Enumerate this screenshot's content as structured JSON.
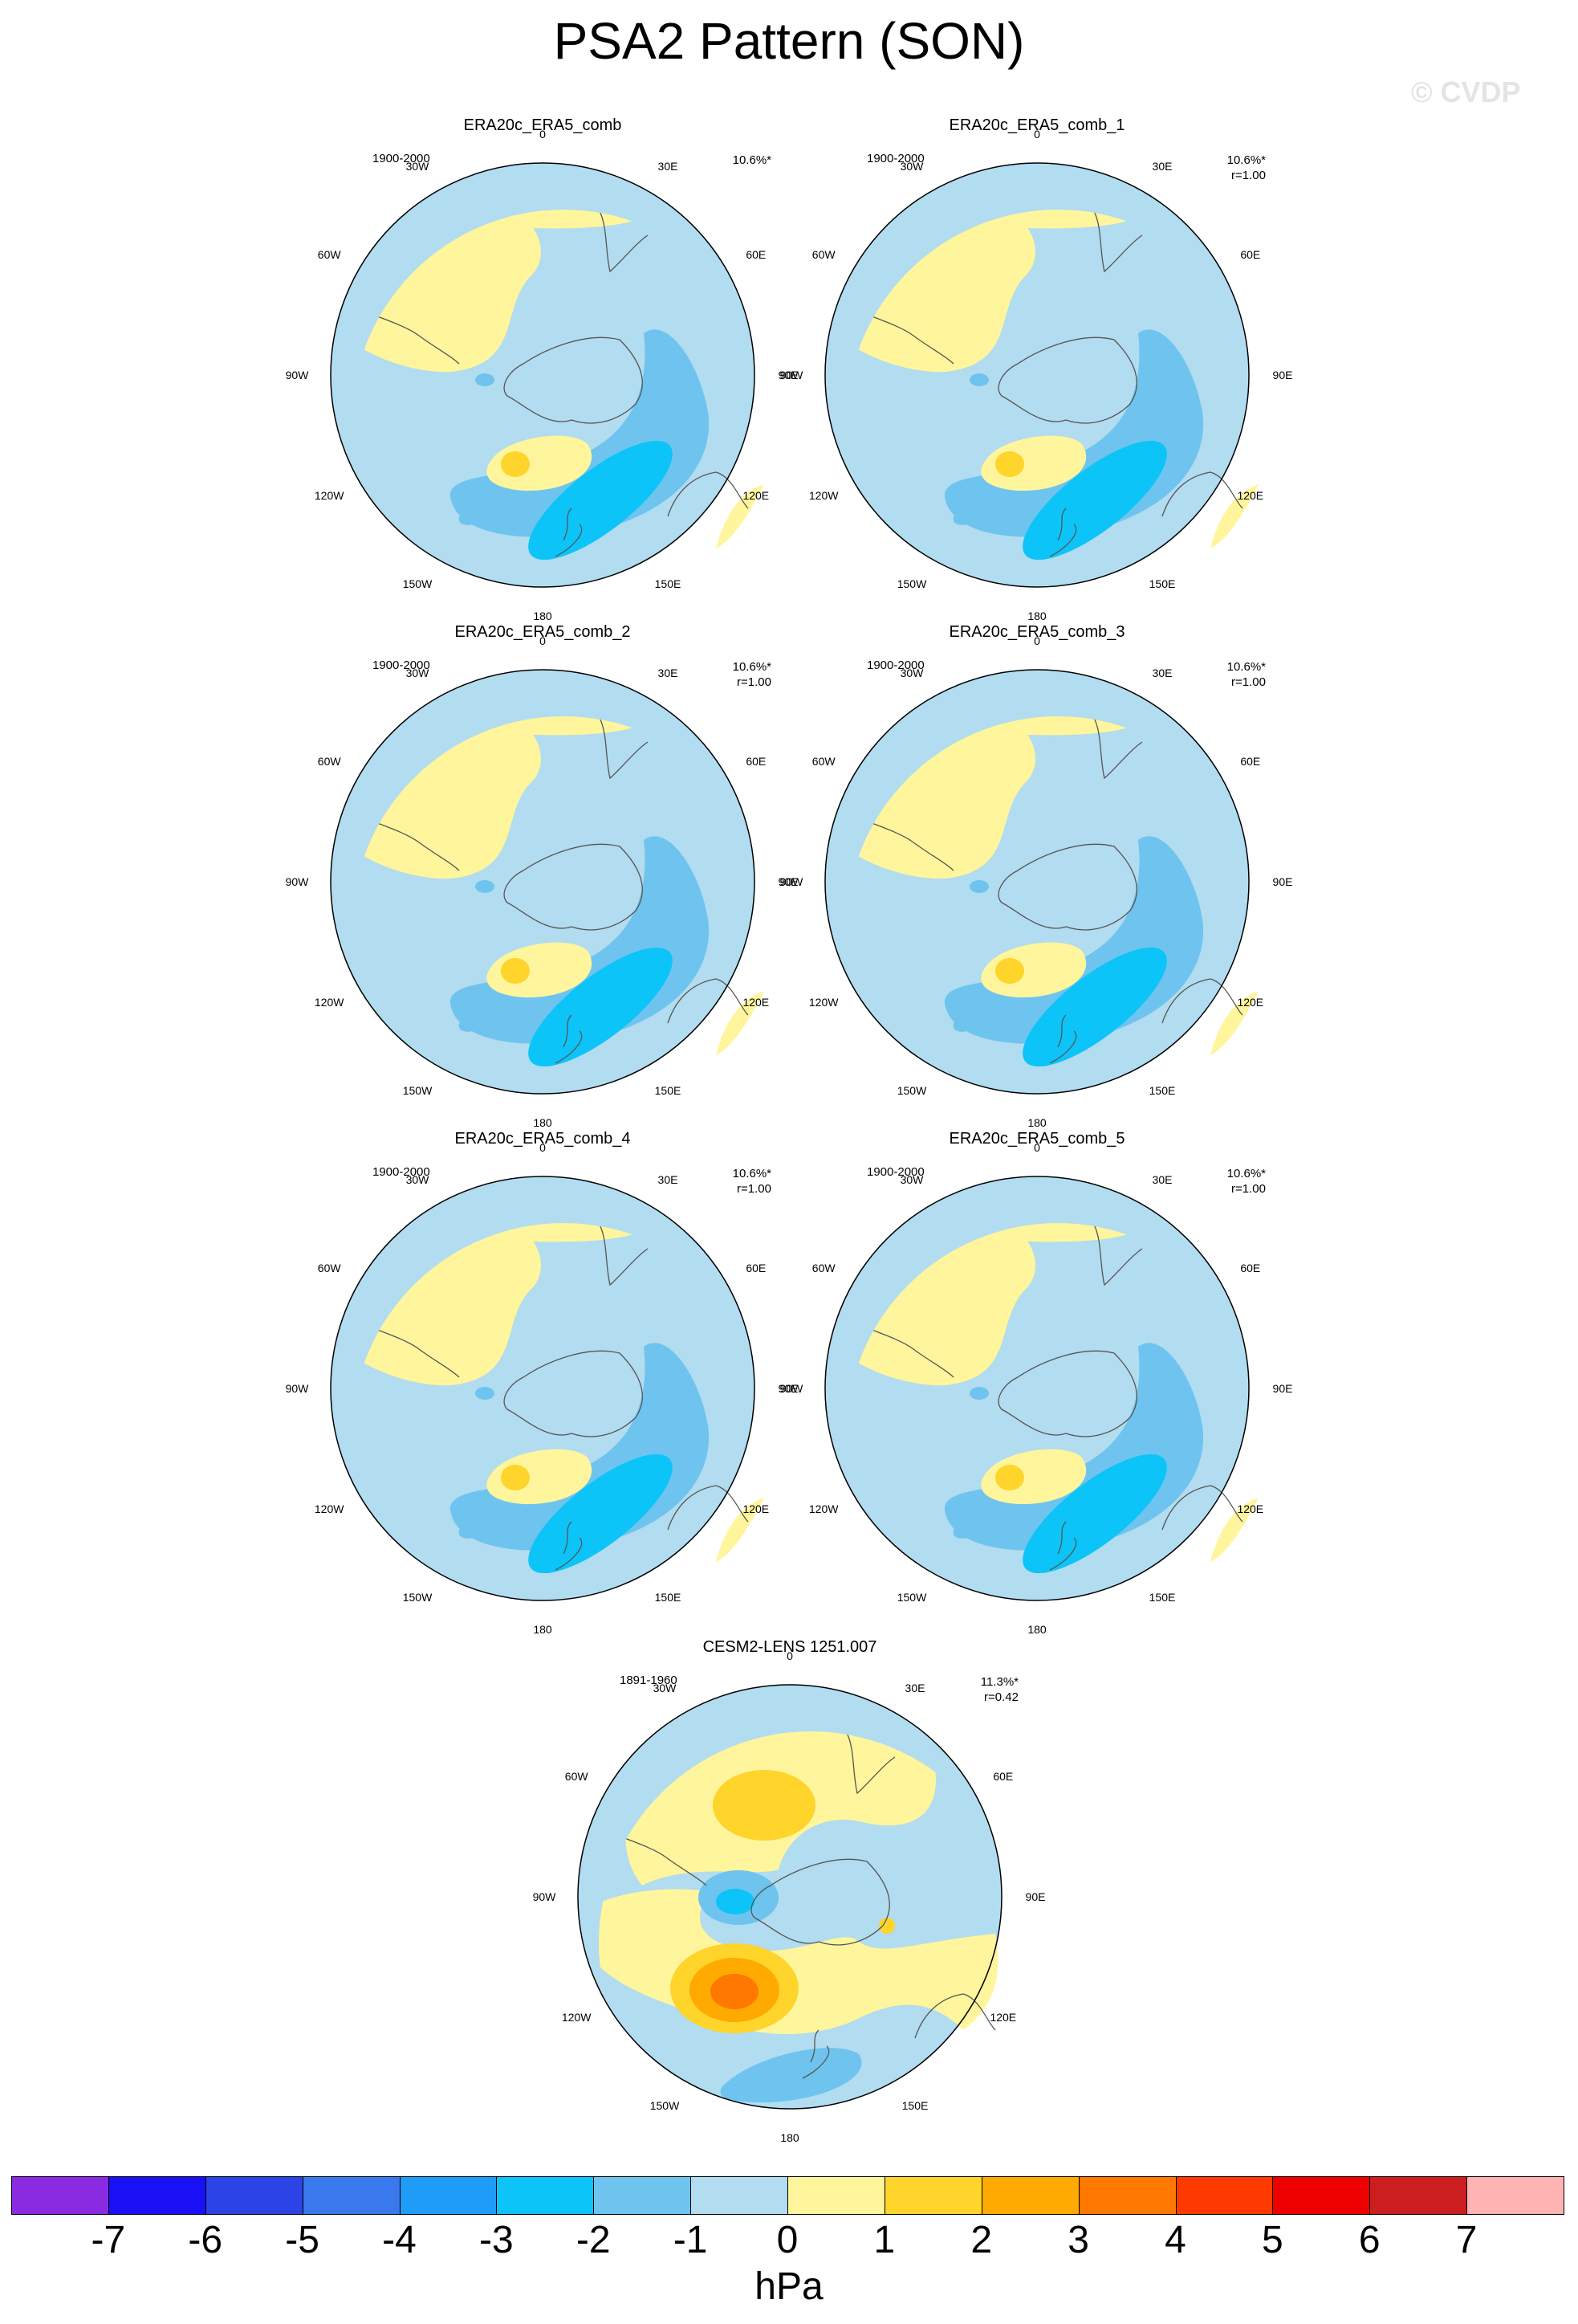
{
  "figure": {
    "title": "PSA2 Pattern (SON)",
    "copyright": "© CVDP",
    "units": "hPa"
  },
  "map_labels": {
    "lon": [
      "0",
      "30E",
      "60E",
      "90E",
      "120E",
      "150E",
      "180",
      "150W",
      "120W",
      "90W",
      "60W",
      "30W"
    ]
  },
  "panels": [
    {
      "title": "ERA20c_ERA5_comb",
      "period": "1900-2000",
      "pct": "10.6%*",
      "corr": "",
      "pattern": "obs"
    },
    {
      "title": "ERA20c_ERA5_comb_1",
      "period": "1900-2000",
      "pct": "10.6%*",
      "corr": "r=1.00",
      "pattern": "obs"
    },
    {
      "title": "ERA20c_ERA5_comb_2",
      "period": "1900-2000",
      "pct": "10.6%*",
      "corr": "r=1.00",
      "pattern": "obs"
    },
    {
      "title": "ERA20c_ERA5_comb_3",
      "period": "1900-2000",
      "pct": "10.6%*",
      "corr": "r=1.00",
      "pattern": "obs"
    },
    {
      "title": "ERA20c_ERA5_comb_4",
      "period": "1900-2000",
      "pct": "10.6%*",
      "corr": "r=1.00",
      "pattern": "obs"
    },
    {
      "title": "ERA20c_ERA5_comb_5",
      "period": "1900-2000",
      "pct": "10.6%*",
      "corr": "r=1.00",
      "pattern": "obs"
    },
    {
      "title": "CESM2-LENS 1251.007",
      "period": "1891-1960",
      "pct": "11.3%*",
      "corr": "r=0.42",
      "pattern": "model"
    }
  ],
  "colorbar": {
    "ticks": [
      "-7",
      "-6",
      "-5",
      "-4",
      "-3",
      "-2",
      "-1",
      "0",
      "1",
      "2",
      "3",
      "4",
      "5",
      "6",
      "7"
    ],
    "colors": [
      "#8a2be2",
      "#1a10f5",
      "#2c43e6",
      "#3a78ee",
      "#1e9cf7",
      "#0cc4f7",
      "#6ec4ee",
      "#b2dcf0",
      "#fff59c",
      "#ffd42b",
      "#ffaa00",
      "#ff7800",
      "#ff3a00",
      "#ee0000",
      "#cc1e1e",
      "#ffb4b4"
    ]
  },
  "palette": {
    "land_outline": "#555555",
    "lightblue": "#b2dcf0",
    "midblue": "#6ec4ee",
    "blue": "#0cc4f7",
    "lightyellow": "#fff59c",
    "yellow": "#ffd42b",
    "orange": "#ffaa00",
    "darkorange": "#ff7800"
  }
}
